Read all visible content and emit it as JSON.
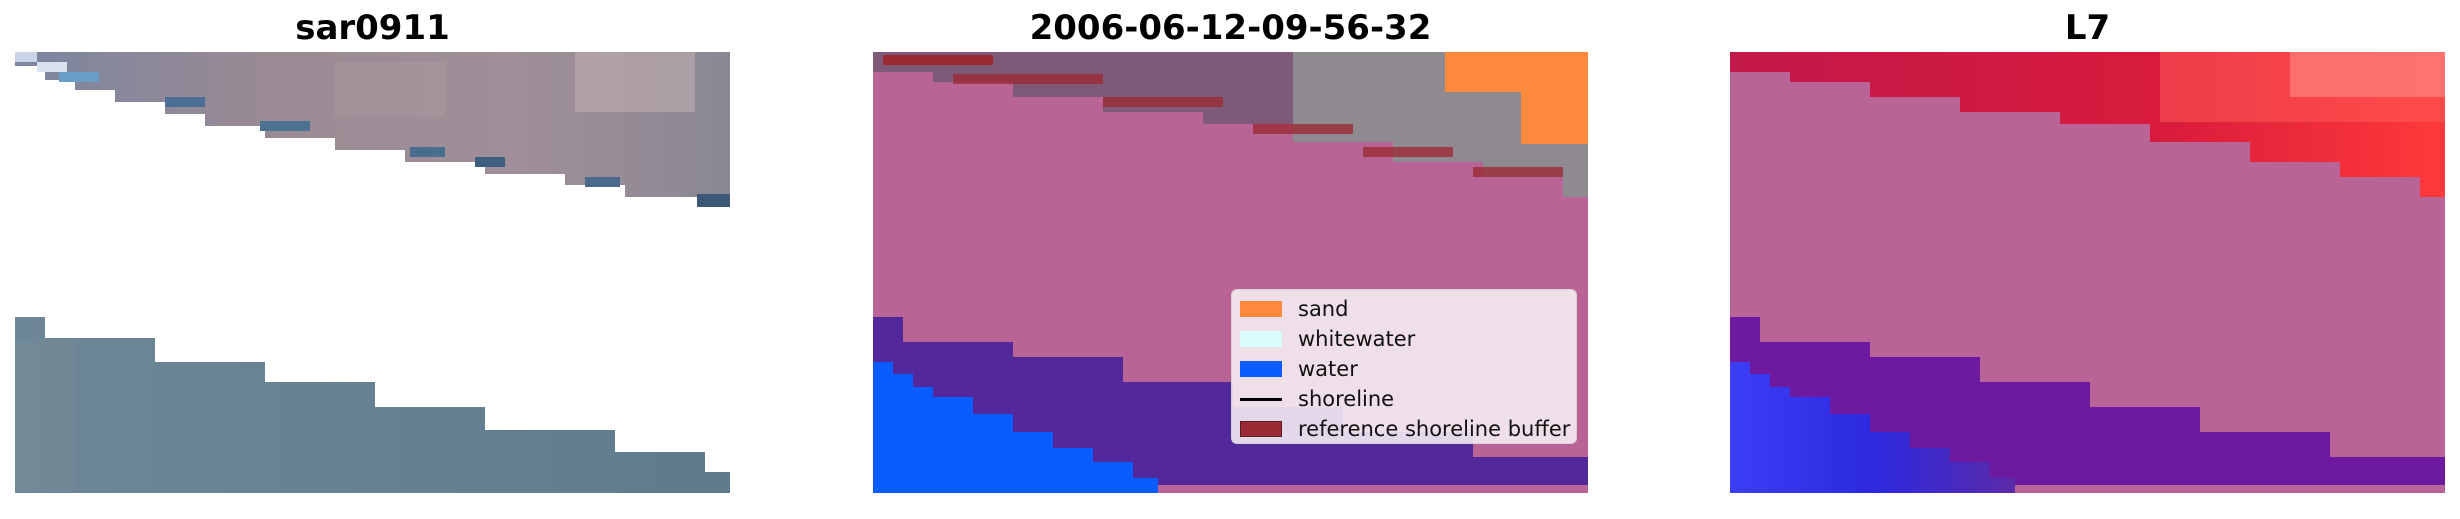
{
  "panels": [
    {
      "title": "sar0911"
    },
    {
      "title": "2006-06-12-09-56-32"
    },
    {
      "title": "L7"
    }
  ],
  "legend": {
    "items": [
      {
        "label": "sand",
        "color": "#ff8a3d",
        "kind": "patch"
      },
      {
        "label": "whitewater",
        "color": "#d9fbfb",
        "kind": "patch"
      },
      {
        "label": "water",
        "color": "#0a5cff",
        "kind": "patch"
      },
      {
        "label": "shoreline",
        "color": "#000000",
        "kind": "line"
      },
      {
        "label": "reference shoreline buffer",
        "color": "#9b2a35",
        "kind": "patch"
      }
    ]
  },
  "colors": {
    "buffer": "#b96497",
    "land": "#8c7f86",
    "water_rgb": "#66808f",
    "class_water_deep": "#53289a",
    "class_water_blue": "#0a5cff",
    "class_sand": "#ff8a3d",
    "thermal_hot": "#e51933",
    "thermal_cold": "#4a2cf0",
    "thermal_mid": "#6d1aa0"
  }
}
